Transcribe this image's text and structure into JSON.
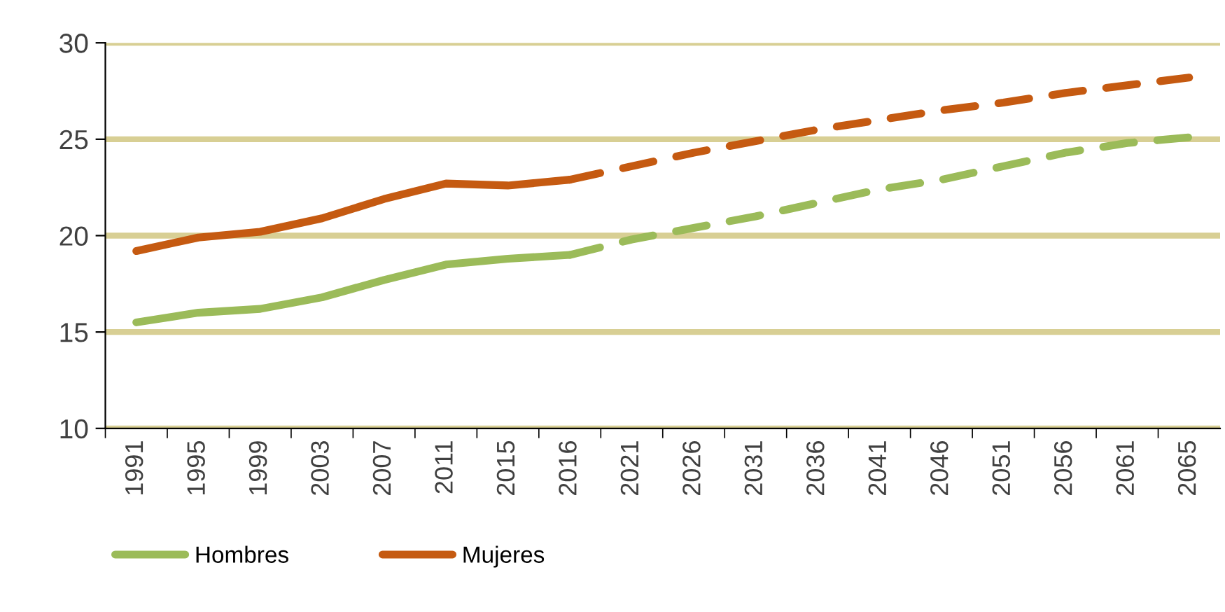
{
  "chart_data": {
    "type": "line",
    "categories": [
      "1991",
      "1995",
      "1999",
      "2003",
      "2007",
      "2011",
      "2015",
      "2016",
      "2021",
      "2026",
      "2031",
      "2036",
      "2041",
      "2046",
      "2051",
      "2056",
      "2061",
      "2065"
    ],
    "series": [
      {
        "name": "Hombres",
        "color": "#9bbb59",
        "line_style": "solid",
        "values": [
          15.5,
          16.0,
          16.2,
          16.8,
          17.7,
          18.5,
          18.8,
          19.0,
          null,
          null,
          null,
          null,
          null,
          null,
          null,
          null,
          null,
          null
        ]
      },
      {
        "name": "Mujeres",
        "color": "#c55a11",
        "line_style": "solid",
        "values": [
          19.2,
          19.9,
          20.2,
          20.9,
          21.9,
          22.7,
          22.6,
          22.9,
          null,
          null,
          null,
          null,
          null,
          null,
          null,
          null,
          null,
          null
        ]
      },
      {
        "color": "#9bbb59",
        "line_style": "dashed",
        "values": [
          null,
          null,
          null,
          null,
          null,
          null,
          null,
          19.0,
          19.8,
          20.4,
          21.0,
          21.7,
          22.4,
          22.9,
          23.6,
          24.3,
          24.8,
          25.1
        ]
      },
      {
        "color": "#c55a11",
        "line_style": "dashed",
        "values": [
          null,
          null,
          null,
          null,
          null,
          null,
          null,
          22.9,
          23.6,
          24.3,
          24.9,
          25.5,
          26.0,
          26.5,
          26.9,
          27.4,
          27.8,
          28.2
        ]
      }
    ],
    "ylim": [
      10,
      30
    ],
    "yticks": [
      10,
      15,
      20,
      25,
      30
    ],
    "grid": "y",
    "legend": "bottom left",
    "marker": "none"
  }
}
